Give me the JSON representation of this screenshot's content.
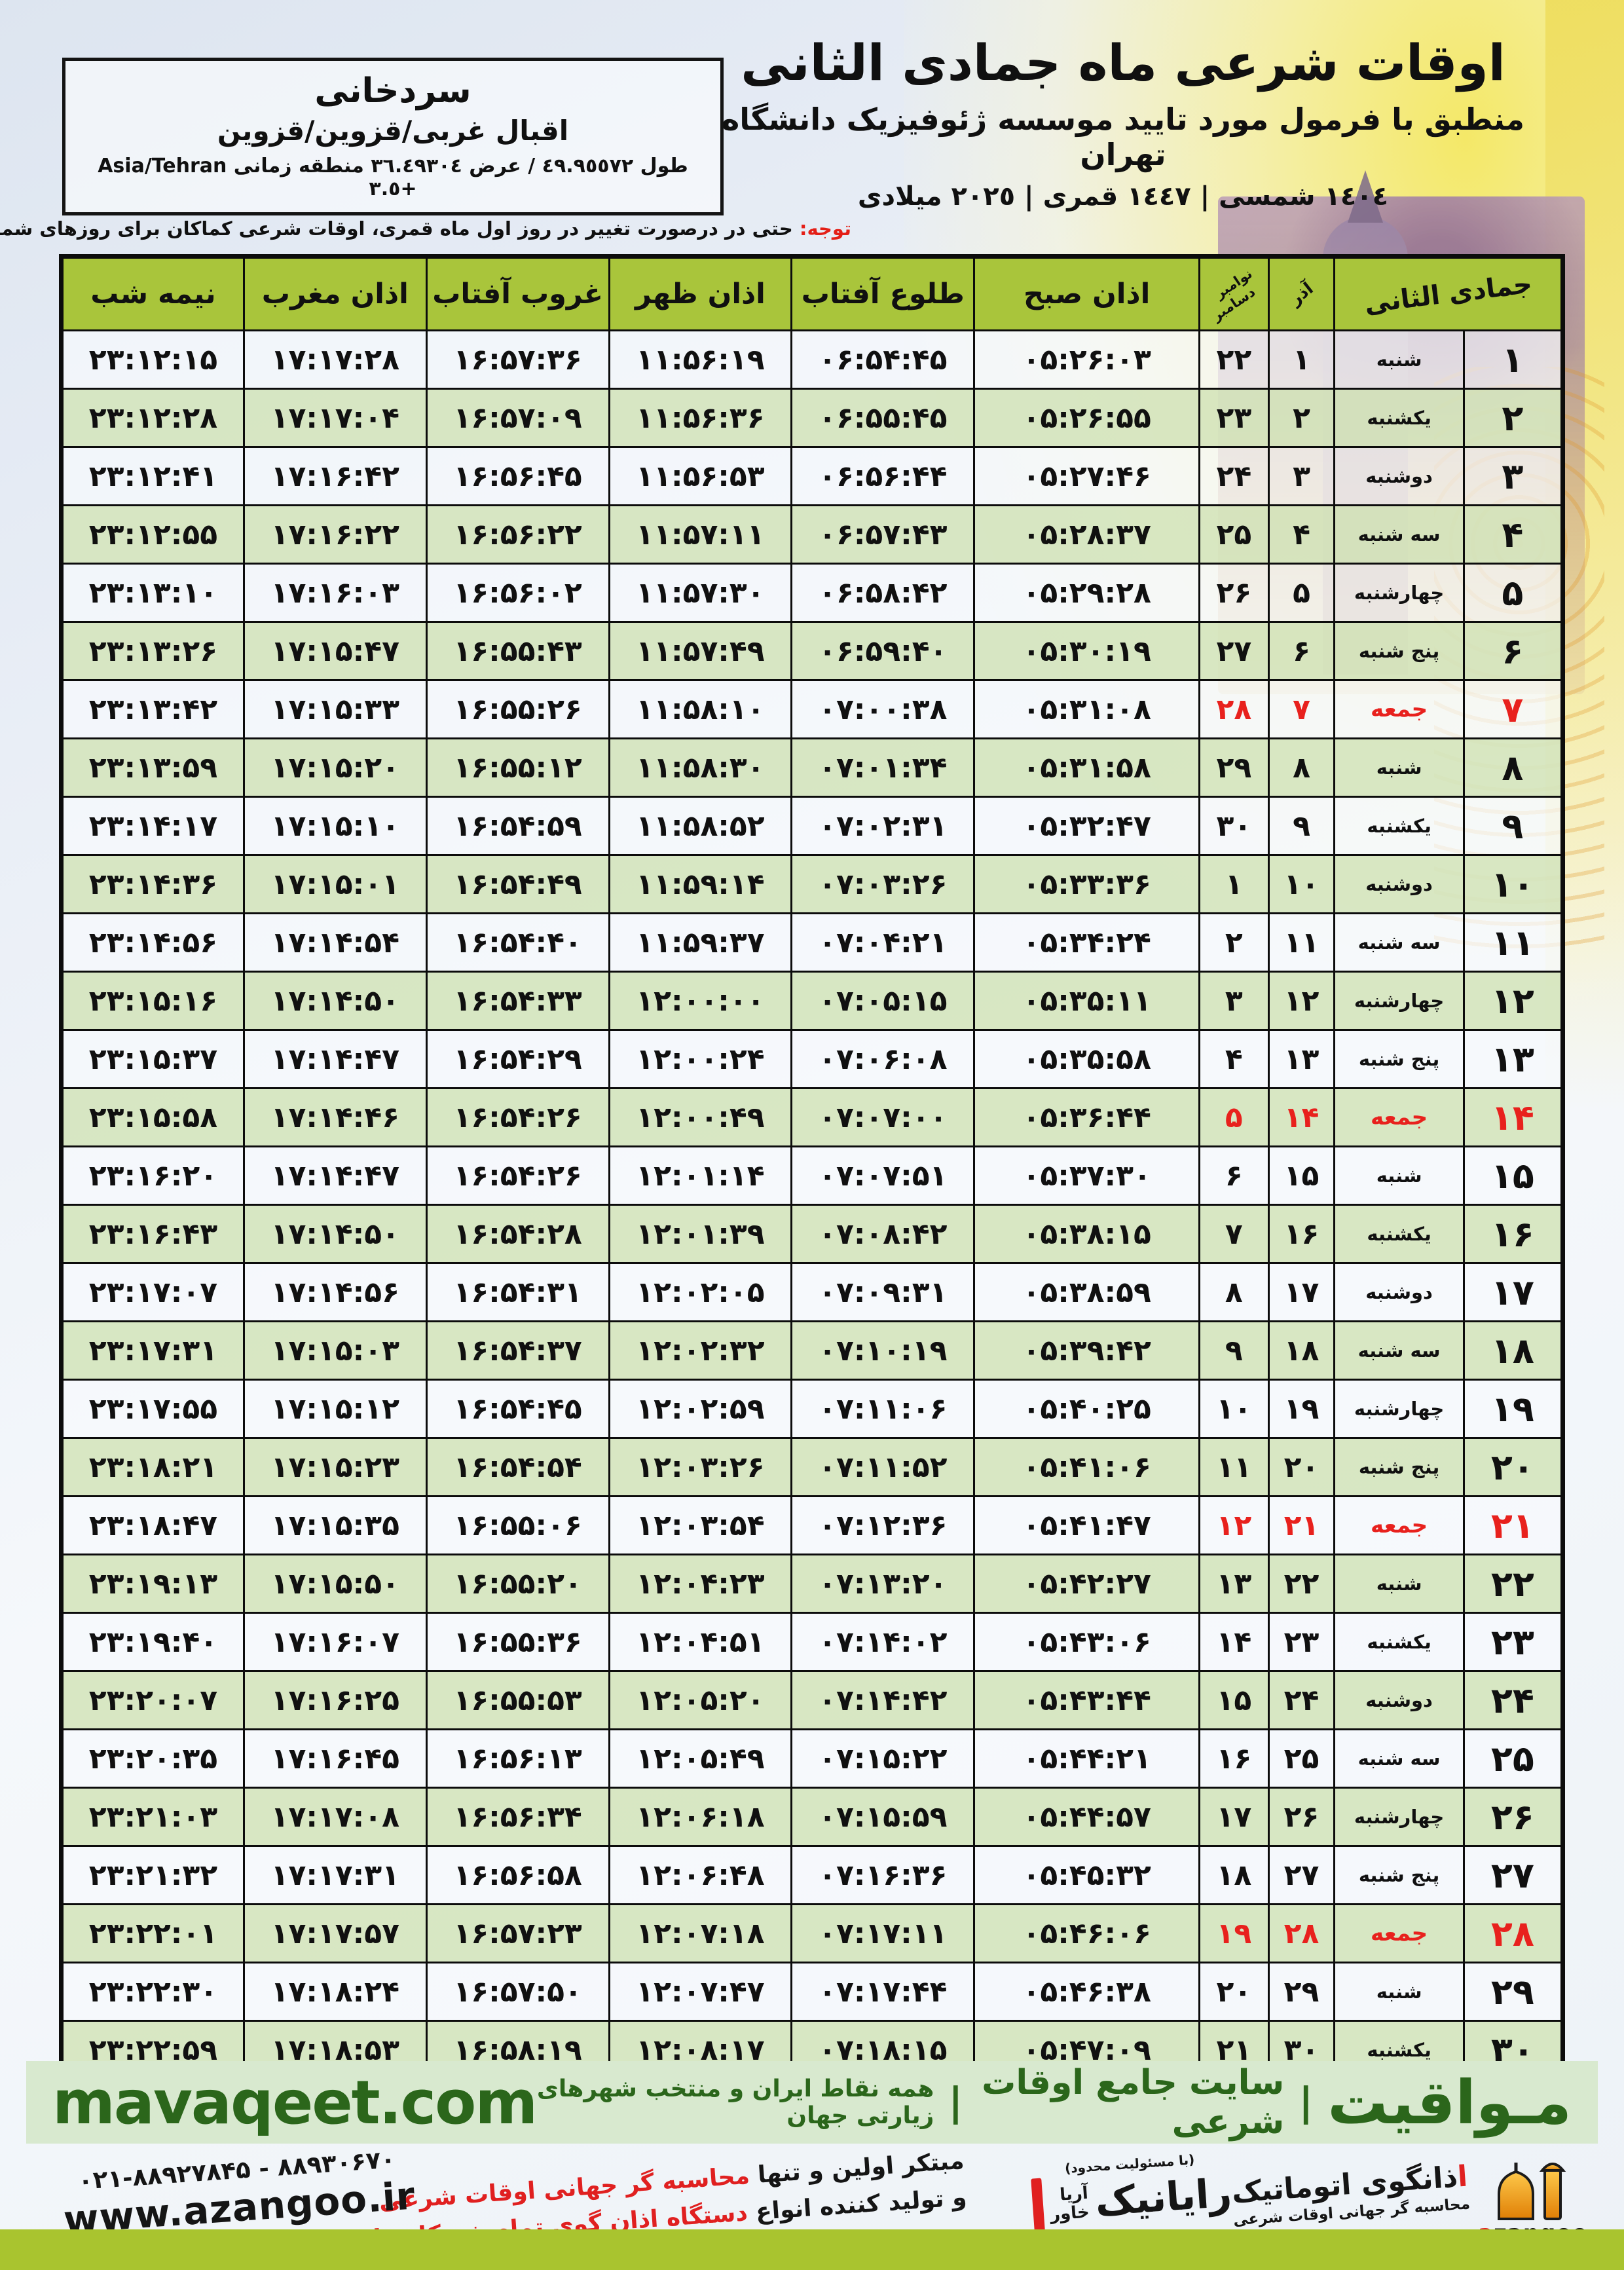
{
  "colors": {
    "header_olive": "#a9c53b",
    "row_green": "#d5e5be",
    "row_light": "#f6f9fc",
    "friday_red": "#e8211d",
    "note_red": "#e41e16",
    "footer_bg": "#d8e9cf",
    "footer_text": "#2b661b",
    "bottom_bar": "#a9c42f"
  },
  "header": {
    "title": "اوقات شرعی ماه جمادی الثانی",
    "subtitle": "منطبق با فرمول مورد تایید موسسه ژئوفیزیک دانشگاه تهران",
    "dates": "١٤٠٤ شمسی | ١٤٤٧ قمری | ٢٠٢٥ میلادی"
  },
  "location": {
    "name": "سردخانی",
    "region": "اقبال غربی/قزوین/قزوین",
    "coords": "طول ٤٩.٩٥٥٧٢ / عرض ٣٦.٤٩٣٠٤ منطقه زمانی Asia/Tehran +٣.٥"
  },
  "note": {
    "label": "توجه:",
    "text": " حتی در درصورت تغییر در روز اول ماه قمری، اوقات شرعی کماکان برای روزهای شمسی و میلادی معتبر است."
  },
  "table": {
    "col_headers": {
      "month_day": "جمادی الثانی",
      "azar": "آذر",
      "nov": "نوامبر",
      "dec": "دسامبر",
      "fajr": "اذان صبح",
      "sunrise": "طلوع آفتاب",
      "dhuhr": "اذان ظهر",
      "sunset": "غروب آفتاب",
      "maghrib": "اذان مغرب",
      "midnight": "نیمه شب"
    },
    "rows": [
      {
        "day": "۱",
        "weekday": "شنبه",
        "azar": "۱",
        "greg": "۲۲",
        "fajr": "۰۵:۲۶:۰۳",
        "sunrise": "۰۶:۵۴:۴۵",
        "dhuhr": "۱۱:۵۶:۱۹",
        "sunset": "۱۶:۵۷:۳۶",
        "maghrib": "۱۷:۱۷:۲۸",
        "midnight": "۲۳:۱۲:۱۵",
        "friday": false
      },
      {
        "day": "۲",
        "weekday": "یکشنبه",
        "azar": "۲",
        "greg": "۲۳",
        "fajr": "۰۵:۲۶:۵۵",
        "sunrise": "۰۶:۵۵:۴۵",
        "dhuhr": "۱۱:۵۶:۳۶",
        "sunset": "۱۶:۵۷:۰۹",
        "maghrib": "۱۷:۱۷:۰۴",
        "midnight": "۲۳:۱۲:۲۸",
        "friday": false
      },
      {
        "day": "۳",
        "weekday": "دوشنبه",
        "azar": "۳",
        "greg": "۲۴",
        "fajr": "۰۵:۲۷:۴۶",
        "sunrise": "۰۶:۵۶:۴۴",
        "dhuhr": "۱۱:۵۶:۵۳",
        "sunset": "۱۶:۵۶:۴۵",
        "maghrib": "۱۷:۱۶:۴۲",
        "midnight": "۲۳:۱۲:۴۱",
        "friday": false
      },
      {
        "day": "۴",
        "weekday": "سه شنبه",
        "azar": "۴",
        "greg": "۲۵",
        "fajr": "۰۵:۲۸:۳۷",
        "sunrise": "۰۶:۵۷:۴۳",
        "dhuhr": "۱۱:۵۷:۱۱",
        "sunset": "۱۶:۵۶:۲۲",
        "maghrib": "۱۷:۱۶:۲۲",
        "midnight": "۲۳:۱۲:۵۵",
        "friday": false
      },
      {
        "day": "۵",
        "weekday": "چهارشنبه",
        "azar": "۵",
        "greg": "۲۶",
        "fajr": "۰۵:۲۹:۲۸",
        "sunrise": "۰۶:۵۸:۴۲",
        "dhuhr": "۱۱:۵۷:۳۰",
        "sunset": "۱۶:۵۶:۰۲",
        "maghrib": "۱۷:۱۶:۰۳",
        "midnight": "۲۳:۱۳:۱۰",
        "friday": false
      },
      {
        "day": "۶",
        "weekday": "پنج شنبه",
        "azar": "۶",
        "greg": "۲۷",
        "fajr": "۰۵:۳۰:۱۹",
        "sunrise": "۰۶:۵۹:۴۰",
        "dhuhr": "۱۱:۵۷:۴۹",
        "sunset": "۱۶:۵۵:۴۳",
        "maghrib": "۱۷:۱۵:۴۷",
        "midnight": "۲۳:۱۳:۲۶",
        "friday": false
      },
      {
        "day": "۷",
        "weekday": "جمعه",
        "azar": "۷",
        "greg": "۲۸",
        "fajr": "۰۵:۳۱:۰۸",
        "sunrise": "۰۷:۰۰:۳۸",
        "dhuhr": "۱۱:۵۸:۱۰",
        "sunset": "۱۶:۵۵:۲۶",
        "maghrib": "۱۷:۱۵:۳۳",
        "midnight": "۲۳:۱۳:۴۲",
        "friday": true
      },
      {
        "day": "۸",
        "weekday": "شنبه",
        "azar": "۸",
        "greg": "۲۹",
        "fajr": "۰۵:۳۱:۵۸",
        "sunrise": "۰۷:۰۱:۳۴",
        "dhuhr": "۱۱:۵۸:۳۰",
        "sunset": "۱۶:۵۵:۱۲",
        "maghrib": "۱۷:۱۵:۲۰",
        "midnight": "۲۳:۱۳:۵۹",
        "friday": false
      },
      {
        "day": "۹",
        "weekday": "یکشنبه",
        "azar": "۹",
        "greg": "۳۰",
        "fajr": "۰۵:۳۲:۴۷",
        "sunrise": "۰۷:۰۲:۳۱",
        "dhuhr": "۱۱:۵۸:۵۲",
        "sunset": "۱۶:۵۴:۵۹",
        "maghrib": "۱۷:۱۵:۱۰",
        "midnight": "۲۳:۱۴:۱۷",
        "friday": false
      },
      {
        "day": "۱۰",
        "weekday": "دوشنبه",
        "azar": "۱۰",
        "greg": "۱",
        "fajr": "۰۵:۳۳:۳۶",
        "sunrise": "۰۷:۰۳:۲۶",
        "dhuhr": "۱۱:۵۹:۱۴",
        "sunset": "۱۶:۵۴:۴۹",
        "maghrib": "۱۷:۱۵:۰۱",
        "midnight": "۲۳:۱۴:۳۶",
        "friday": false
      },
      {
        "day": "۱۱",
        "weekday": "سه شنبه",
        "azar": "۱۱",
        "greg": "۲",
        "fajr": "۰۵:۳۴:۲۴",
        "sunrise": "۰۷:۰۴:۲۱",
        "dhuhr": "۱۱:۵۹:۳۷",
        "sunset": "۱۶:۵۴:۴۰",
        "maghrib": "۱۷:۱۴:۵۴",
        "midnight": "۲۳:۱۴:۵۶",
        "friday": false
      },
      {
        "day": "۱۲",
        "weekday": "چهارشنبه",
        "azar": "۱۲",
        "greg": "۳",
        "fajr": "۰۵:۳۵:۱۱",
        "sunrise": "۰۷:۰۵:۱۵",
        "dhuhr": "۱۲:۰۰:۰۰",
        "sunset": "۱۶:۵۴:۳۳",
        "maghrib": "۱۷:۱۴:۵۰",
        "midnight": "۲۳:۱۵:۱۶",
        "friday": false
      },
      {
        "day": "۱۳",
        "weekday": "پنج شنبه",
        "azar": "۱۳",
        "greg": "۴",
        "fajr": "۰۵:۳۵:۵۸",
        "sunrise": "۰۷:۰۶:۰۸",
        "dhuhr": "۱۲:۰۰:۲۴",
        "sunset": "۱۶:۵۴:۲۹",
        "maghrib": "۱۷:۱۴:۴۷",
        "midnight": "۲۳:۱۵:۳۷",
        "friday": false
      },
      {
        "day": "۱۴",
        "weekday": "جمعه",
        "azar": "۱۴",
        "greg": "۵",
        "fajr": "۰۵:۳۶:۴۴",
        "sunrise": "۰۷:۰۷:۰۰",
        "dhuhr": "۱۲:۰۰:۴۹",
        "sunset": "۱۶:۵۴:۲۶",
        "maghrib": "۱۷:۱۴:۴۶",
        "midnight": "۲۳:۱۵:۵۸",
        "friday": true
      },
      {
        "day": "۱۵",
        "weekday": "شنبه",
        "azar": "۱۵",
        "greg": "۶",
        "fajr": "۰۵:۳۷:۳۰",
        "sunrise": "۰۷:۰۷:۵۱",
        "dhuhr": "۱۲:۰۱:۱۴",
        "sunset": "۱۶:۵۴:۲۶",
        "maghrib": "۱۷:۱۴:۴۷",
        "midnight": "۲۳:۱۶:۲۰",
        "friday": false
      },
      {
        "day": "۱۶",
        "weekday": "یکشنبه",
        "azar": "۱۶",
        "greg": "۷",
        "fajr": "۰۵:۳۸:۱۵",
        "sunrise": "۰۷:۰۸:۴۲",
        "dhuhr": "۱۲:۰۱:۳۹",
        "sunset": "۱۶:۵۴:۲۸",
        "maghrib": "۱۷:۱۴:۵۰",
        "midnight": "۲۳:۱۶:۴۳",
        "friday": false
      },
      {
        "day": "۱۷",
        "weekday": "دوشنبه",
        "azar": "۱۷",
        "greg": "۸",
        "fajr": "۰۵:۳۸:۵۹",
        "sunrise": "۰۷:۰۹:۳۱",
        "dhuhr": "۱۲:۰۲:۰۵",
        "sunset": "۱۶:۵۴:۳۱",
        "maghrib": "۱۷:۱۴:۵۶",
        "midnight": "۲۳:۱۷:۰۷",
        "friday": false
      },
      {
        "day": "۱۸",
        "weekday": "سه شنبه",
        "azar": "۱۸",
        "greg": "۹",
        "fajr": "۰۵:۳۹:۴۲",
        "sunrise": "۰۷:۱۰:۱۹",
        "dhuhr": "۱۲:۰۲:۳۲",
        "sunset": "۱۶:۵۴:۳۷",
        "maghrib": "۱۷:۱۵:۰۳",
        "midnight": "۲۳:۱۷:۳۱",
        "friday": false
      },
      {
        "day": "۱۹",
        "weekday": "چهارشنبه",
        "azar": "۱۹",
        "greg": "۱۰",
        "fajr": "۰۵:۴۰:۲۵",
        "sunrise": "۰۷:۱۱:۰۶",
        "dhuhr": "۱۲:۰۲:۵۹",
        "sunset": "۱۶:۵۴:۴۵",
        "maghrib": "۱۷:۱۵:۱۲",
        "midnight": "۲۳:۱۷:۵۵",
        "friday": false
      },
      {
        "day": "۲۰",
        "weekday": "پنج شنبه",
        "azar": "۲۰",
        "greg": "۱۱",
        "fajr": "۰۵:۴۱:۰۶",
        "sunrise": "۰۷:۱۱:۵۲",
        "dhuhr": "۱۲:۰۳:۲۶",
        "sunset": "۱۶:۵۴:۵۴",
        "maghrib": "۱۷:۱۵:۲۳",
        "midnight": "۲۳:۱۸:۲۱",
        "friday": false
      },
      {
        "day": "۲۱",
        "weekday": "جمعه",
        "azar": "۲۱",
        "greg": "۱۲",
        "fajr": "۰۵:۴۱:۴۷",
        "sunrise": "۰۷:۱۲:۳۶",
        "dhuhr": "۱۲:۰۳:۵۴",
        "sunset": "۱۶:۵۵:۰۶",
        "maghrib": "۱۷:۱۵:۳۵",
        "midnight": "۲۳:۱۸:۴۷",
        "friday": true
      },
      {
        "day": "۲۲",
        "weekday": "شنبه",
        "azar": "۲۲",
        "greg": "۱۳",
        "fajr": "۰۵:۴۲:۲۷",
        "sunrise": "۰۷:۱۳:۲۰",
        "dhuhr": "۱۲:۰۴:۲۳",
        "sunset": "۱۶:۵۵:۲۰",
        "maghrib": "۱۷:۱۵:۵۰",
        "midnight": "۲۳:۱۹:۱۳",
        "friday": false
      },
      {
        "day": "۲۳",
        "weekday": "یکشنبه",
        "azar": "۲۳",
        "greg": "۱۴",
        "fajr": "۰۵:۴۳:۰۶",
        "sunrise": "۰۷:۱۴:۰۲",
        "dhuhr": "۱۲:۰۴:۵۱",
        "sunset": "۱۶:۵۵:۳۶",
        "maghrib": "۱۷:۱۶:۰۷",
        "midnight": "۲۳:۱۹:۴۰",
        "friday": false
      },
      {
        "day": "۲۴",
        "weekday": "دوشنبه",
        "azar": "۲۴",
        "greg": "۱۵",
        "fajr": "۰۵:۴۳:۴۴",
        "sunrise": "۰۷:۱۴:۴۲",
        "dhuhr": "۱۲:۰۵:۲۰",
        "sunset": "۱۶:۵۵:۵۳",
        "maghrib": "۱۷:۱۶:۲۵",
        "midnight": "۲۳:۲۰:۰۷",
        "friday": false
      },
      {
        "day": "۲۵",
        "weekday": "سه شنبه",
        "azar": "۲۵",
        "greg": "۱۶",
        "fajr": "۰۵:۴۴:۲۱",
        "sunrise": "۰۷:۱۵:۲۲",
        "dhuhr": "۱۲:۰۵:۴۹",
        "sunset": "۱۶:۵۶:۱۳",
        "maghrib": "۱۷:۱۶:۴۵",
        "midnight": "۲۳:۲۰:۳۵",
        "friday": false
      },
      {
        "day": "۲۶",
        "weekday": "چهارشنبه",
        "azar": "۲۶",
        "greg": "۱۷",
        "fajr": "۰۵:۴۴:۵۷",
        "sunrise": "۰۷:۱۵:۵۹",
        "dhuhr": "۱۲:۰۶:۱۸",
        "sunset": "۱۶:۵۶:۳۴",
        "maghrib": "۱۷:۱۷:۰۸",
        "midnight": "۲۳:۲۱:۰۳",
        "friday": false
      },
      {
        "day": "۲۷",
        "weekday": "پنج شنبه",
        "azar": "۲۷",
        "greg": "۱۸",
        "fajr": "۰۵:۴۵:۳۲",
        "sunrise": "۰۷:۱۶:۳۶",
        "dhuhr": "۱۲:۰۶:۴۸",
        "sunset": "۱۶:۵۶:۵۸",
        "maghrib": "۱۷:۱۷:۳۱",
        "midnight": "۲۳:۲۱:۳۲",
        "friday": false
      },
      {
        "day": "۲۸",
        "weekday": "جمعه",
        "azar": "۲۸",
        "greg": "۱۹",
        "fajr": "۰۵:۴۶:۰۶",
        "sunrise": "۰۷:۱۷:۱۱",
        "dhuhr": "۱۲:۰۷:۱۸",
        "sunset": "۱۶:۵۷:۲۳",
        "maghrib": "۱۷:۱۷:۵۷",
        "midnight": "۲۳:۲۲:۰۱",
        "friday": true
      },
      {
        "day": "۲۹",
        "weekday": "شنبه",
        "azar": "۲۹",
        "greg": "۲۰",
        "fajr": "۰۵:۴۶:۳۸",
        "sunrise": "۰۷:۱۷:۴۴",
        "dhuhr": "۱۲:۰۷:۴۷",
        "sunset": "۱۶:۵۷:۵۰",
        "maghrib": "۱۷:۱۸:۲۴",
        "midnight": "۲۳:۲۲:۳۰",
        "friday": false
      },
      {
        "day": "۳۰",
        "weekday": "یکشنبه",
        "azar": "۳۰",
        "greg": "۲۱",
        "fajr": "۰۵:۴۷:۰۹",
        "sunrise": "۰۷:۱۸:۱۵",
        "dhuhr": "۱۲:۰۸:۱۷",
        "sunset": "۱۶:۵۸:۱۹",
        "maghrib": "۱۷:۱۸:۵۳",
        "midnight": "۲۳:۲۲:۵۹",
        "friday": false
      }
    ]
  },
  "footer_band": {
    "brand": "مـواقیت",
    "sep": "|",
    "tagline1": "سایت جامع اوقات شرعی",
    "tagline2": "همه نقاط ایران و منتخب شهرهای زیارتی جهان",
    "site": "mavaqeet.com"
  },
  "bottom": {
    "promo_line1_black": "مبتکر اولین و تنها ",
    "promo_line1_red": "محاسبه گر جهانی اوقات شرعی",
    "promo_line2_black": "و تولید کننده انواع ",
    "promo_line2_red": "دستگاه اذان گوی تمام خودکار ماهواره ای",
    "rayanik_small": "(با مسئولیت محدود)",
    "rayanik_name": "رایانیک",
    "rayanik_sub1": "آریا",
    "rayanik_sub2": "خاور",
    "azangoo_title_red": "ا",
    "azangoo_title_rest": "ذانگوی اتوماتیک",
    "azangoo_sub": "محاسبه گر جهانی اوقات شرعی",
    "azangoo_latin_red": "a",
    "azangoo_latin_rest": "zangoo",
    "phones": "۰۲۱-۸۸۹۲۷۸۴۵ - ۸۸۹۳۰۶۷۰",
    "website": "www.azangoo.ir"
  }
}
